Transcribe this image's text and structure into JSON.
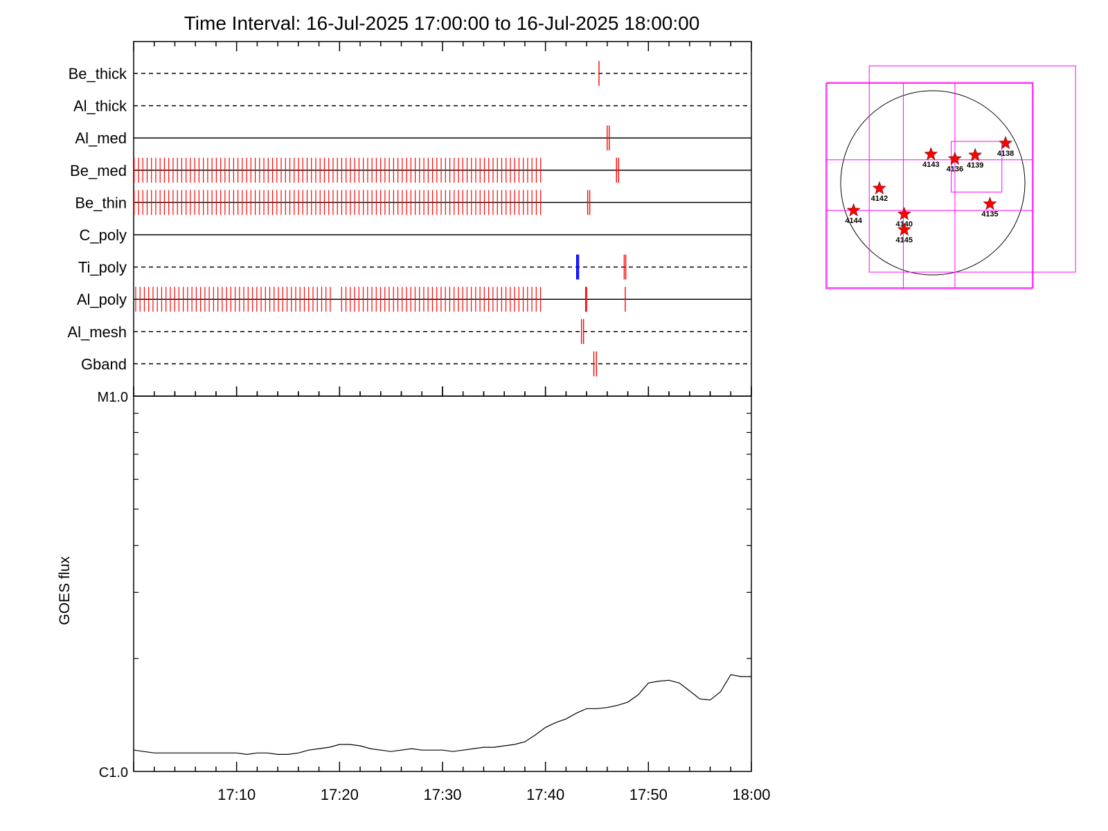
{
  "chart_data": [
    {
      "type": "timeline",
      "title": "Time Interval: 16-Jul-2025 17:00:00 to 16-Jul-2025 18:00:00",
      "x_range": [
        "17:00",
        "18:00"
      ],
      "colors": {
        "exposure": "#ff0000",
        "special": "#0000ff",
        "axis": "#000000"
      },
      "channels": [
        {
          "name": "Be_thick",
          "line": "dashed",
          "marks": [
            {
              "t": 45.2
            }
          ]
        },
        {
          "name": "Al_thick",
          "line": "dashed",
          "marks": []
        },
        {
          "name": "Al_med",
          "line": "solid",
          "marks": [
            {
              "t": 46.0
            },
            {
              "t": 46.2
            }
          ]
        },
        {
          "name": "Be_med",
          "line": "solid",
          "trains": [
            {
              "start": 0.05,
              "end": 39.7,
              "step": 0.42
            }
          ],
          "marks": [
            {
              "t": 46.9
            },
            {
              "t": 47.1
            }
          ]
        },
        {
          "name": "Be_thin",
          "line": "solid",
          "trains": [
            {
              "start": 0.05,
              "end": 39.7,
              "step": 0.42
            }
          ],
          "marks": [
            {
              "t": 44.1
            },
            {
              "t": 44.3
            }
          ]
        },
        {
          "name": "C_poly",
          "line": "solid",
          "marks": []
        },
        {
          "name": "Ti_poly",
          "line": "dashed",
          "marks": [
            {
              "t": 43.05,
              "color": "blue"
            },
            {
              "t": 43.2,
              "color": "blue"
            },
            {
              "t": 47.65
            },
            {
              "t": 47.8
            }
          ]
        },
        {
          "name": "Al_poly",
          "line": "solid",
          "trains": [
            {
              "start": 0.2,
              "end": 19.3,
              "step": 0.42
            },
            {
              "start": 20.2,
              "end": 39.9,
              "step": 0.42
            }
          ],
          "marks": [
            {
              "t": 43.9
            },
            {
              "t": 44.0
            },
            {
              "t": 47.75
            }
          ]
        },
        {
          "name": "Al_mesh",
          "line": "dashed",
          "marks": [
            {
              "t": 43.5
            },
            {
              "t": 43.7
            }
          ]
        },
        {
          "name": "Gband",
          "line": "dashed",
          "marks": [
            {
              "t": 44.7
            },
            {
              "t": 44.95
            }
          ]
        }
      ]
    },
    {
      "type": "line",
      "xlabel": "",
      "ylabel": "GOES flux",
      "scale": "log",
      "ylim": [
        1e-06,
        1e-05
      ],
      "y_ticks": [
        {
          "label": "M1.0",
          "value": 1e-05
        },
        {
          "label": "C1.0",
          "value": 1e-06
        }
      ],
      "x_range": [
        "17:00",
        "18:00"
      ],
      "x_ticks": [
        "17:10",
        "17:20",
        "17:30",
        "17:40",
        "17:50",
        "18:00"
      ],
      "color": "#000000",
      "series": [
        {
          "x_minutes": [
            0,
            1,
            2,
            3,
            4,
            5,
            6,
            7,
            8,
            9,
            10,
            11,
            12,
            13,
            14,
            15,
            16,
            17,
            18,
            19,
            20,
            21,
            22,
            23,
            24,
            25,
            26,
            27,
            28,
            29,
            30,
            31,
            32,
            33,
            34,
            35,
            36,
            37,
            38,
            39,
            40,
            41,
            42,
            43,
            44,
            45,
            46,
            47,
            48,
            49,
            50,
            51,
            52,
            53,
            54,
            55,
            56,
            57,
            58,
            59,
            60
          ],
          "values": [
            1.14e-06,
            1.13e-06,
            1.12e-06,
            1.12e-06,
            1.12e-06,
            1.12e-06,
            1.12e-06,
            1.12e-06,
            1.12e-06,
            1.12e-06,
            1.12e-06,
            1.11e-06,
            1.12e-06,
            1.12e-06,
            1.11e-06,
            1.11e-06,
            1.12e-06,
            1.14e-06,
            1.15e-06,
            1.16e-06,
            1.18e-06,
            1.18e-06,
            1.17e-06,
            1.15e-06,
            1.14e-06,
            1.13e-06,
            1.14e-06,
            1.15e-06,
            1.14e-06,
            1.14e-06,
            1.14e-06,
            1.13e-06,
            1.14e-06,
            1.15e-06,
            1.16e-06,
            1.16e-06,
            1.17e-06,
            1.18e-06,
            1.2e-06,
            1.25e-06,
            1.31e-06,
            1.35e-06,
            1.38e-06,
            1.43e-06,
            1.47e-06,
            1.47e-06,
            1.48e-06,
            1.5e-06,
            1.53e-06,
            1.6e-06,
            1.72e-06,
            1.74e-06,
            1.75e-06,
            1.72e-06,
            1.64e-06,
            1.56e-06,
            1.55e-06,
            1.63e-06,
            1.81e-06,
            1.79e-06,
            1.79e-06
          ]
        }
      ]
    },
    {
      "type": "diagram",
      "description_colors": {
        "fov_box": "#ff00ff",
        "star": "#ff0000",
        "disk": "#000000"
      },
      "active_regions": [
        {
          "label": "4138",
          "x": 0.79,
          "y": 0.43
        },
        {
          "label": "4143",
          "x": -0.02,
          "y": 0.31
        },
        {
          "label": "4136",
          "x": 0.24,
          "y": 0.26
        },
        {
          "label": "4139",
          "x": 0.46,
          "y": 0.3
        },
        {
          "label": "4142",
          "x": -0.58,
          "y": -0.06
        },
        {
          "label": "4135",
          "x": 0.62,
          "y": -0.23
        },
        {
          "label": "4144",
          "x": -0.86,
          "y": -0.3
        },
        {
          "label": "4140",
          "x": -0.31,
          "y": -0.34
        },
        {
          "label": "4145",
          "x": -0.31,
          "y": -0.51
        }
      ],
      "fov_boxes": [
        {
          "x0": -1.16,
          "y0": -1.15,
          "x1": 1.08,
          "y1": 1.08
        },
        {
          "x0": -1.15,
          "y0": -1.14,
          "x1": 1.09,
          "y1": 1.09
        },
        {
          "x0": -0.69,
          "y0": -0.97,
          "x1": 1.55,
          "y1": 1.27
        },
        {
          "x0": 0.2,
          "y0": -0.1,
          "x1": 0.75,
          "y1": 0.45
        }
      ],
      "fov_grid": {
        "x_lines": [
          -0.32,
          0.24
        ],
        "y_lines": [
          0.25,
          -0.3
        ],
        "x_range": [
          -1.16,
          1.08
        ],
        "y_range": [
          -1.15,
          1.08
        ]
      }
    }
  ]
}
